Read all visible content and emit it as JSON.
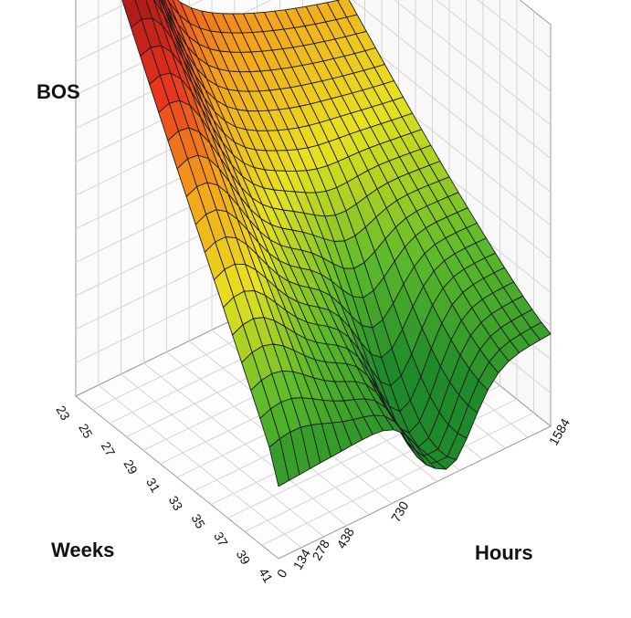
{
  "chart_data": {
    "type": "surface",
    "title": "",
    "zlabel": "BOS",
    "xlabel": "Weeks",
    "ylabel": "Hours",
    "x_ticks": [
      "23",
      "25",
      "27",
      "29",
      "31",
      "33",
      "35",
      "37",
      "39",
      "41"
    ],
    "y_ticks": [
      "0",
      "134",
      "278",
      "438",
      "730",
      "1584"
    ],
    "x_range": [
      23,
      41
    ],
    "y_range": [
      0,
      1584
    ],
    "grid": true,
    "colormap": [
      "#1f8a2a",
      "#5dbb2a",
      "#e8e21e",
      "#f5a21c",
      "#e8321c",
      "#a4161a"
    ],
    "surface_profile_x": [
      23,
      25,
      27,
      29,
      31,
      33,
      35,
      37,
      39,
      41
    ],
    "surface_profile_y": [
      0,
      134,
      278,
      438,
      730,
      1584
    ]
  }
}
